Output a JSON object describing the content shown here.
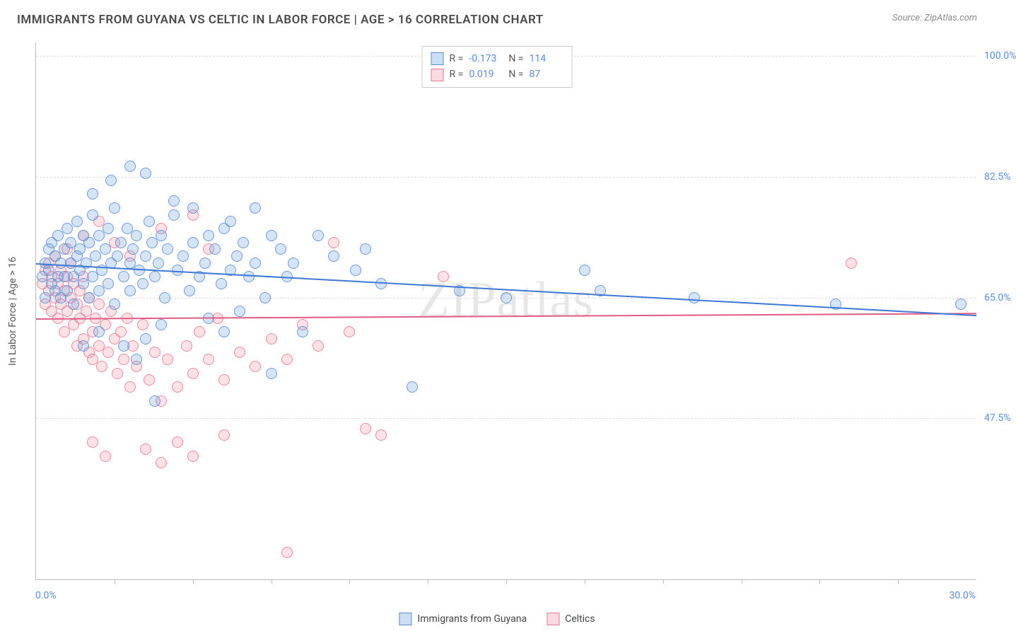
{
  "header": {
    "title": "IMMIGRANTS FROM GUYANA VS CELTIC IN LABOR FORCE | AGE > 16 CORRELATION CHART",
    "source": "Source: ZipAtlas.com"
  },
  "watermark": {
    "zip": "ZIP",
    "atlas": "atlas"
  },
  "chart": {
    "type": "scatter",
    "background_color": "#ffffff",
    "grid_color": "#dddddd",
    "axis_color": "#bbbbbb",
    "y_axis_title": "In Labor Force | Age > 16",
    "xlim": [
      0.0,
      30.0
    ],
    "ylim": [
      24.0,
      102.0
    ],
    "x_labels": {
      "min": "0.0%",
      "max": "30.0%"
    },
    "x_ticks_pct": [
      2.5,
      5,
      7.5,
      10,
      12.5,
      15,
      17.5,
      20,
      22.5,
      25,
      27.5
    ],
    "y_ticks": [
      {
        "value": 100.0,
        "label": "100.0%"
      },
      {
        "value": 82.5,
        "label": "82.5%"
      },
      {
        "value": 65.0,
        "label": "65.0%"
      },
      {
        "value": 47.5,
        "label": "47.5%"
      }
    ],
    "point_radius": 8,
    "series": {
      "blue": {
        "name": "Immigrants from Guyana",
        "color_fill": "rgba(108,160,220,0.28)",
        "color_stroke": "#5b8dd6",
        "R": "-0.173",
        "N": "114",
        "trend": {
          "x1": 0,
          "y1": 70.0,
          "x2": 30,
          "y2": 62.5
        },
        "points": [
          [
            0.2,
            68
          ],
          [
            0.3,
            70
          ],
          [
            0.3,
            65
          ],
          [
            0.4,
            72
          ],
          [
            0.4,
            69
          ],
          [
            0.5,
            67
          ],
          [
            0.5,
            73
          ],
          [
            0.6,
            66
          ],
          [
            0.6,
            71
          ],
          [
            0.7,
            68
          ],
          [
            0.7,
            74
          ],
          [
            0.8,
            70
          ],
          [
            0.8,
            65
          ],
          [
            0.9,
            72
          ],
          [
            0.9,
            68
          ],
          [
            1.0,
            75
          ],
          [
            1.0,
            66
          ],
          [
            1.1,
            70
          ],
          [
            1.1,
            73
          ],
          [
            1.2,
            68
          ],
          [
            1.2,
            64
          ],
          [
            1.3,
            71
          ],
          [
            1.3,
            76
          ],
          [
            1.4,
            69
          ],
          [
            1.4,
            72
          ],
          [
            1.5,
            67
          ],
          [
            1.5,
            74
          ],
          [
            1.6,
            70
          ],
          [
            1.7,
            65
          ],
          [
            1.7,
            73
          ],
          [
            1.8,
            68
          ],
          [
            1.8,
            77
          ],
          [
            1.9,
            71
          ],
          [
            2.0,
            66
          ],
          [
            2.0,
            74
          ],
          [
            2.1,
            69
          ],
          [
            2.2,
            72
          ],
          [
            2.3,
            75
          ],
          [
            2.3,
            67
          ],
          [
            2.4,
            70
          ],
          [
            2.5,
            78
          ],
          [
            2.5,
            64
          ],
          [
            2.6,
            71
          ],
          [
            2.7,
            73
          ],
          [
            2.8,
            68
          ],
          [
            2.9,
            75
          ],
          [
            3.0,
            70
          ],
          [
            3.0,
            66
          ],
          [
            3.1,
            72
          ],
          [
            3.2,
            74
          ],
          [
            3.3,
            69
          ],
          [
            3.4,
            67
          ],
          [
            3.5,
            71
          ],
          [
            3.6,
            76
          ],
          [
            3.7,
            73
          ],
          [
            3.8,
            68
          ],
          [
            3.9,
            70
          ],
          [
            4.0,
            74
          ],
          [
            4.1,
            65
          ],
          [
            4.2,
            72
          ],
          [
            4.4,
            77
          ],
          [
            4.5,
            69
          ],
          [
            4.7,
            71
          ],
          [
            4.9,
            66
          ],
          [
            5.0,
            73
          ],
          [
            5.2,
            68
          ],
          [
            5.4,
            70
          ],
          [
            5.5,
            74
          ],
          [
            5.7,
            72
          ],
          [
            5.9,
            67
          ],
          [
            6.0,
            75
          ],
          [
            6.2,
            69
          ],
          [
            6.4,
            71
          ],
          [
            6.6,
            73
          ],
          [
            6.8,
            68
          ],
          [
            7.0,
            70
          ],
          [
            7.3,
            65
          ],
          [
            7.5,
            74
          ],
          [
            7.8,
            72
          ],
          [
            8.0,
            68
          ],
          [
            8.2,
            70
          ],
          [
            5.5,
            62
          ],
          [
            6.0,
            60
          ],
          [
            6.5,
            63
          ],
          [
            4.0,
            61
          ],
          [
            3.5,
            59
          ],
          [
            2.8,
            58
          ],
          [
            3.2,
            56
          ],
          [
            2.0,
            60
          ],
          [
            1.5,
            58
          ],
          [
            7.5,
            54
          ],
          [
            3.8,
            50
          ],
          [
            3.0,
            84
          ],
          [
            2.4,
            82
          ],
          [
            1.8,
            80
          ],
          [
            4.4,
            79
          ],
          [
            5.0,
            78
          ],
          [
            6.2,
            76
          ],
          [
            7.0,
            78
          ],
          [
            3.5,
            83
          ],
          [
            13.5,
            66
          ],
          [
            15.0,
            65
          ],
          [
            17.5,
            69
          ],
          [
            18.0,
            66
          ],
          [
            21.0,
            65
          ],
          [
            25.5,
            64
          ],
          [
            29.5,
            64
          ],
          [
            9.5,
            71
          ],
          [
            10.2,
            69
          ],
          [
            11.0,
            67
          ],
          [
            12.0,
            52
          ],
          [
            8.5,
            60
          ],
          [
            9.0,
            74
          ],
          [
            10.5,
            72
          ]
        ]
      },
      "pink": {
        "name": "Celtics",
        "color_fill": "rgba(240,150,170,0.28)",
        "color_stroke": "#e67a95",
        "R": "0.019",
        "N": "87",
        "trend": {
          "x1": 0,
          "y1": 62.0,
          "x2": 30,
          "y2": 62.8
        },
        "points": [
          [
            0.2,
            67
          ],
          [
            0.3,
            69
          ],
          [
            0.3,
            64
          ],
          [
            0.4,
            66
          ],
          [
            0.4,
            70
          ],
          [
            0.5,
            63
          ],
          [
            0.5,
            68
          ],
          [
            0.6,
            65
          ],
          [
            0.6,
            71
          ],
          [
            0.7,
            67
          ],
          [
            0.7,
            62
          ],
          [
            0.8,
            69
          ],
          [
            0.8,
            64
          ],
          [
            0.9,
            66
          ],
          [
            0.9,
            60
          ],
          [
            1.0,
            68
          ],
          [
            1.0,
            63
          ],
          [
            1.1,
            70
          ],
          [
            1.1,
            65
          ],
          [
            1.2,
            61
          ],
          [
            1.2,
            67
          ],
          [
            1.3,
            64
          ],
          [
            1.3,
            58
          ],
          [
            1.4,
            66
          ],
          [
            1.4,
            62
          ],
          [
            1.5,
            59
          ],
          [
            1.5,
            68
          ],
          [
            1.6,
            63
          ],
          [
            1.7,
            57
          ],
          [
            1.7,
            65
          ],
          [
            1.8,
            60
          ],
          [
            1.8,
            56
          ],
          [
            1.9,
            62
          ],
          [
            2.0,
            58
          ],
          [
            2.0,
            64
          ],
          [
            2.1,
            55
          ],
          [
            2.2,
            61
          ],
          [
            2.3,
            57
          ],
          [
            2.4,
            63
          ],
          [
            2.5,
            59
          ],
          [
            2.6,
            54
          ],
          [
            2.7,
            60
          ],
          [
            2.8,
            56
          ],
          [
            2.9,
            62
          ],
          [
            3.0,
            52
          ],
          [
            3.1,
            58
          ],
          [
            3.2,
            55
          ],
          [
            3.4,
            61
          ],
          [
            3.6,
            53
          ],
          [
            3.8,
            57
          ],
          [
            4.0,
            50
          ],
          [
            4.2,
            56
          ],
          [
            4.5,
            52
          ],
          [
            4.8,
            58
          ],
          [
            5.0,
            54
          ],
          [
            5.2,
            60
          ],
          [
            5.5,
            56
          ],
          [
            5.8,
            62
          ],
          [
            6.0,
            53
          ],
          [
            6.5,
            57
          ],
          [
            7.0,
            55
          ],
          [
            7.5,
            59
          ],
          [
            8.0,
            56
          ],
          [
            8.5,
            61
          ],
          [
            9.0,
            58
          ],
          [
            10.0,
            60
          ],
          [
            1.0,
            72
          ],
          [
            1.5,
            74
          ],
          [
            2.0,
            76
          ],
          [
            2.5,
            73
          ],
          [
            3.0,
            71
          ],
          [
            4.0,
            75
          ],
          [
            5.0,
            77
          ],
          [
            5.5,
            72
          ],
          [
            1.8,
            44
          ],
          [
            2.2,
            42
          ],
          [
            3.5,
            43
          ],
          [
            4.0,
            41
          ],
          [
            4.5,
            44
          ],
          [
            5.0,
            42
          ],
          [
            6.0,
            45
          ],
          [
            11.0,
            45
          ],
          [
            8.0,
            28
          ],
          [
            13.0,
            68
          ],
          [
            10.5,
            46
          ],
          [
            9.5,
            73
          ],
          [
            26.0,
            70
          ]
        ]
      }
    }
  },
  "legend_top": {
    "rows": [
      {
        "swatch": "blue",
        "r_label": "R =",
        "r_val": "-0.173",
        "n_label": "N =",
        "n_val": "114"
      },
      {
        "swatch": "pink",
        "r_label": "R =",
        "r_val": "0.019",
        "n_label": "N =",
        "n_val": "87"
      }
    ]
  },
  "legend_bottom": {
    "items": [
      {
        "swatch": "blue",
        "label": "Immigrants from Guyana"
      },
      {
        "swatch": "pink",
        "label": "Celtics"
      }
    ]
  }
}
